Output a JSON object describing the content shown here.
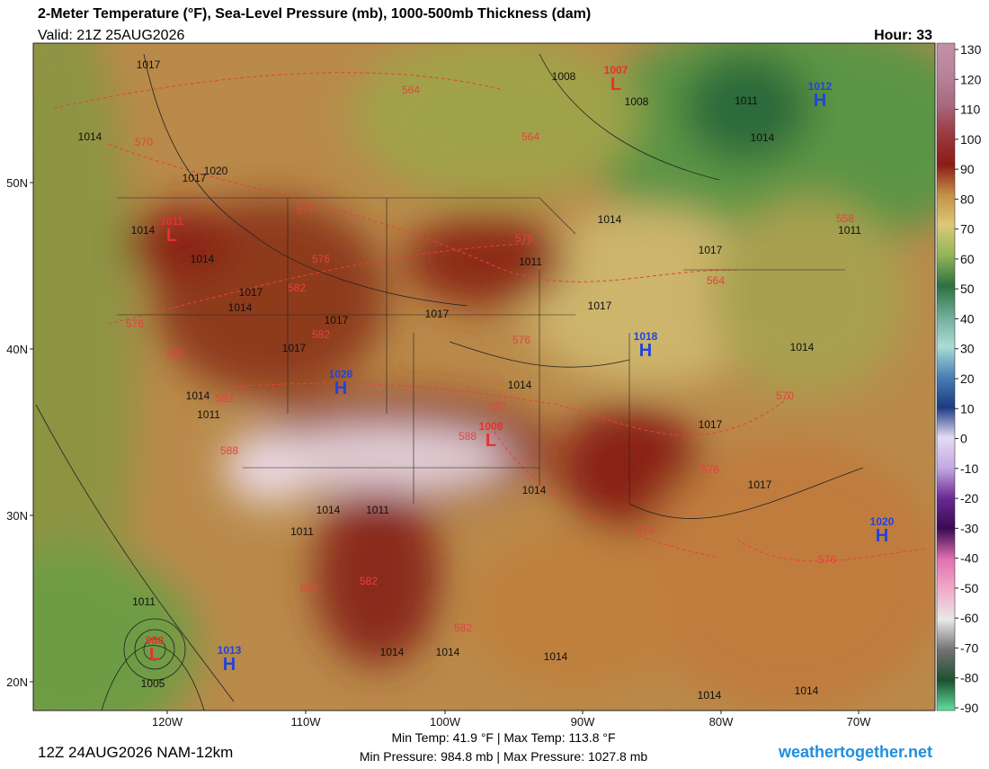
{
  "header": {
    "title": "2-Meter Temperature (°F), Sea-Level Pressure (mb), 1000-500mb Thickness (dam)",
    "valid": "Valid: 21Z 25AUG2026",
    "hour": "Hour: 33"
  },
  "colorbar": {
    "ticks": [
      130,
      120,
      110,
      100,
      90,
      80,
      70,
      60,
      50,
      40,
      30,
      20,
      10,
      0,
      -10,
      -20,
      -30,
      -40,
      -50,
      -60,
      -70,
      -80,
      -90
    ],
    "colors": [
      "#c590a8",
      "#b8849a",
      "#a86a80",
      "#9a3a40",
      "#8a1c16",
      "#c49048",
      "#dcc878",
      "#90b458",
      "#2e7040",
      "#70ac98",
      "#aadcd6",
      "#4a80b4",
      "#1c3a82",
      "#e4dcf2",
      "#c4a8e2",
      "#6a2a92",
      "#3a0a52",
      "#e070b0",
      "#f2aac8",
      "#e8e8e8",
      "#727272",
      "#1e5030",
      "#60e0a0"
    ]
  },
  "lat_labels": [
    "50N",
    "40N",
    "30N",
    "20N"
  ],
  "lon_labels": [
    "120W",
    "110W",
    "100W",
    "90W",
    "80W",
    "70W"
  ],
  "centers": [
    {
      "label": "L",
      "value": "1007"
    },
    {
      "label": "H",
      "value": "1012"
    },
    {
      "label": "L",
      "value": "1011"
    },
    {
      "label": "H",
      "value": "1018"
    },
    {
      "label": "H",
      "value": "1028"
    },
    {
      "label": "L",
      "value": "1008"
    },
    {
      "label": "H",
      "value": "1020"
    },
    {
      "label": "L",
      "value": "988"
    },
    {
      "label": "H",
      "value": "1013"
    }
  ],
  "isobar_labels": [
    "1017",
    "1008",
    "1008",
    "1011",
    "1014",
    "1014",
    "1020",
    "1017",
    "1014",
    "1014",
    "1017",
    "1011",
    "1011",
    "1014",
    "1017",
    "1014",
    "1017",
    "1017",
    "1017",
    "1017",
    "1014",
    "1014",
    "1014",
    "1011",
    "1017",
    "1017",
    "1014",
    "1014",
    "1011",
    "1011",
    "1011",
    "1005",
    "1014",
    "1014",
    "1014",
    "1014",
    "1014"
  ],
  "thickness_labels": [
    "564",
    "564",
    "570",
    "570",
    "576",
    "576",
    "582",
    "576",
    "582",
    "582",
    "576",
    "558",
    "564",
    "570",
    "582",
    "582",
    "588",
    "588",
    "576",
    "576",
    "576",
    "582",
    "582",
    "582"
  ],
  "footer": {
    "run": "12Z 24AUG2026 NAM-12km",
    "temps": "Min Temp:  41.9 °F | Max Temp: 113.8 °F",
    "pressures": "Min Pressure: 984.8 mb | Max Pressure: 1027.8 mb",
    "site": "weathertogether.net"
  }
}
